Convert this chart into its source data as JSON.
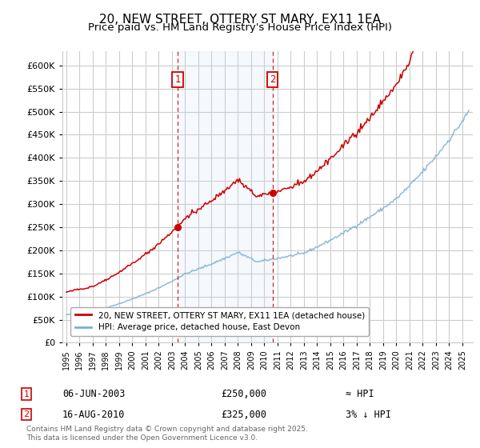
{
  "title": "20, NEW STREET, OTTERY ST MARY, EX11 1EA",
  "subtitle": "Price paid vs. HM Land Registry's House Price Index (HPI)",
  "ytick_values": [
    0,
    50000,
    100000,
    150000,
    200000,
    250000,
    300000,
    350000,
    400000,
    450000,
    500000,
    550000,
    600000
  ],
  "ylim": [
    0,
    630000
  ],
  "xlim_start": 1994.7,
  "xlim_end": 2025.8,
  "marker1_year": 2003.44,
  "marker1_price": 250000,
  "marker1_date": "06-JUN-2003",
  "marker1_note": "≈ HPI",
  "marker2_year": 2010.62,
  "marker2_price": 325000,
  "marker2_date": "16-AUG-2010",
  "marker2_note": "3% ↓ HPI",
  "legend1": "20, NEW STREET, OTTERY ST MARY, EX11 1EA (detached house)",
  "legend2": "HPI: Average price, detached house, East Devon",
  "footnote": "Contains HM Land Registry data © Crown copyright and database right 2025.\nThis data is licensed under the Open Government Licence v3.0.",
  "line1_color": "#cc0000",
  "line2_color": "#7bafd4",
  "marker_box_color": "#cc0000",
  "grid_color": "#cccccc",
  "background_color": "#ffffff",
  "title_fontsize": 11,
  "subtitle_fontsize": 9.5
}
